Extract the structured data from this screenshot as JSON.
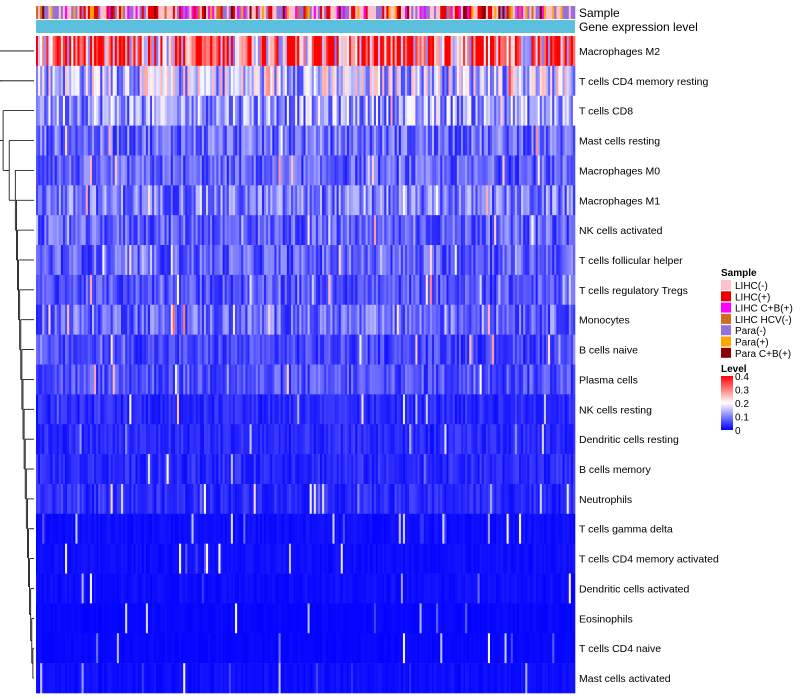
{
  "chart_data": {
    "type": "heatmap",
    "title": "",
    "n_samples": 260,
    "rows": [
      {
        "label": "Macrophages M2",
        "mean": 0.3
      },
      {
        "label": "T cells CD4 memory resting",
        "mean": 0.15
      },
      {
        "label": "T cells CD8",
        "mean": 0.12
      },
      {
        "label": "Mast cells resting",
        "mean": 0.08
      },
      {
        "label": "Macrophages M0",
        "mean": 0.07
      },
      {
        "label": "Macrophages M1",
        "mean": 0.09
      },
      {
        "label": "NK cells activated",
        "mean": 0.07
      },
      {
        "label": "T cells follicular helper",
        "mean": 0.07
      },
      {
        "label": "T cells regulatory  Tregs",
        "mean": 0.06
      },
      {
        "label": "Monocytes",
        "mean": 0.08
      },
      {
        "label": "B cells naive",
        "mean": 0.05
      },
      {
        "label": "Plasma cells",
        "mean": 0.06
      },
      {
        "label": "NK cells resting",
        "mean": 0.03
      },
      {
        "label": "Dendritic cells resting",
        "mean": 0.03
      },
      {
        "label": "B cells memory",
        "mean": 0.03
      },
      {
        "label": "Neutrophils",
        "mean": 0.03
      },
      {
        "label": "T cells gamma delta",
        "mean": 0.01
      },
      {
        "label": "T cells CD4 memory activated",
        "mean": 0.01
      },
      {
        "label": "Dendritic cells activated",
        "mean": 0.01
      },
      {
        "label": "Eosinophils",
        "mean": 0.005
      },
      {
        "label": "T cells CD4 naive",
        "mean": 0.005
      },
      {
        "label": "Mast cells activated",
        "mean": 0.01
      }
    ],
    "annotations": [
      {
        "label": "Sample"
      },
      {
        "label": "Gene expression level"
      }
    ],
    "legend": {
      "sample": {
        "title": "Sample",
        "entries": [
          {
            "label": "LIHC(-)",
            "color": "#ffc0cb"
          },
          {
            "label": "LIHC(+)",
            "color": "#ee0000"
          },
          {
            "label": "LIHC C+B(+)",
            "color": "#ff00ff"
          },
          {
            "label": "LIHC HCV(-)",
            "color": "#d2691e"
          },
          {
            "label": "Para(-)",
            "color": "#9370db"
          },
          {
            "label": "Para(+)",
            "color": "#ffa500"
          },
          {
            "label": "Para C+B(+)",
            "color": "#8b0000"
          }
        ]
      },
      "level": {
        "title": "Level",
        "range": [
          0,
          0.4
        ],
        "ticks": [
          "0.4",
          "0.3",
          "0.2",
          "0.1",
          "0"
        ],
        "colors": {
          "low": "#0000ff",
          "mid": "#ffffff",
          "high": "#ff0000"
        }
      }
    },
    "gene_expression_color": "#5bc0de"
  }
}
